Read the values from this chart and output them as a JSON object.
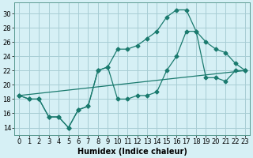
{
  "xlabel": "Humidex (Indice chaleur)",
  "bg_color": "#d6f0f5",
  "grid_color": "#a8cdd5",
  "line_color": "#1a7a6e",
  "xlim": [
    -0.5,
    23.5
  ],
  "ylim": [
    13.0,
    31.5
  ],
  "xticks": [
    0,
    1,
    2,
    3,
    4,
    5,
    6,
    7,
    8,
    9,
    10,
    11,
    12,
    13,
    14,
    15,
    16,
    17,
    18,
    19,
    20,
    21,
    22,
    23
  ],
  "yticks": [
    14,
    16,
    18,
    20,
    22,
    24,
    26,
    28,
    30
  ],
  "line1_x": [
    0,
    1,
    2,
    3,
    4,
    5,
    6,
    7,
    8,
    9,
    10,
    11,
    12,
    13,
    14,
    15,
    16,
    17,
    18,
    19,
    20,
    21,
    22,
    23
  ],
  "line1_y": [
    18.5,
    18.0,
    18.0,
    15.5,
    15.5,
    14.0,
    16.5,
    17.0,
    22.0,
    22.5,
    25.0,
    25.0,
    25.5,
    26.5,
    27.5,
    29.5,
    30.5,
    30.5,
    27.5,
    26.0,
    25.0,
    24.5,
    23.0,
    22.0
  ],
  "line2_x": [
    0,
    1,
    2,
    3,
    4,
    5,
    6,
    7,
    8,
    9,
    10,
    11,
    12,
    13,
    14,
    15,
    16,
    17,
    18,
    19,
    20,
    21,
    22,
    23
  ],
  "line2_y": [
    18.5,
    18.0,
    18.0,
    15.5,
    15.5,
    14.0,
    16.5,
    17.0,
    22.0,
    22.5,
    18.0,
    18.0,
    18.5,
    18.5,
    19.0,
    22.0,
    24.0,
    27.5,
    27.5,
    21.0,
    21.0,
    20.5,
    22.0,
    22.0
  ],
  "line3_x": [
    0,
    23
  ],
  "line3_y": [
    18.5,
    22.0
  ],
  "tick_fontsize": 6.0,
  "xlabel_fontsize": 7.0
}
